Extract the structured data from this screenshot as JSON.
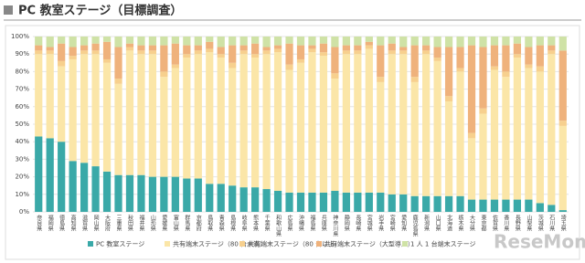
{
  "chart_data": {
    "type": "stacked_bar",
    "title": "PC 教室ステージ（目標調査）",
    "watermark": "ReseMom",
    "categories": [
      "奈良県",
      "福岡県",
      "徳島県",
      "高知県",
      "滋賀県",
      "岡山県",
      "大阪府",
      "三重県",
      "秋田県",
      "福井県",
      "山形県",
      "愛媛県",
      "富山県",
      "群馬県",
      "京都府",
      "鳥取県",
      "青森県",
      "島根県",
      "岐阜県",
      "熊本県",
      "千葉県",
      "和歌山県",
      "広島県",
      "沖縄県",
      "福島県",
      "兵庫県",
      "神奈川県",
      "静岡県",
      "長崎県",
      "宮城県",
      "岩手県",
      "宮崎県",
      "愛知県",
      "鹿児島県",
      "新潟県",
      "山口県",
      "北海道",
      "栃木県",
      "大分県",
      "東京都",
      "佐賀県",
      "香川県",
      "長野県",
      "山梨県",
      "茨城県",
      "石川県",
      "埼玉県"
    ],
    "series": [
      {
        "name": "PC 教室ステージ",
        "color": "#3aa9a8",
        "values": [
          43,
          42,
          40,
          29,
          28,
          26,
          23,
          21,
          21,
          21,
          20,
          20,
          20,
          19,
          19,
          16,
          16,
          15,
          14,
          14,
          13,
          12,
          11,
          11,
          11,
          11,
          12,
          11,
          11,
          11,
          11,
          10,
          10,
          9,
          9,
          9,
          9,
          9,
          7,
          7,
          7,
          7,
          7,
          7,
          5,
          4,
          1
        ]
      },
      {
        "name": "共有端末ステージ（80 台未満）",
        "color": "#fbe6a8",
        "values": [
          47,
          48,
          43,
          58,
          62,
          64,
          62,
          52,
          71,
          69,
          70,
          57,
          62,
          69,
          71,
          75,
          72,
          67,
          76,
          74,
          77,
          79,
          70,
          74,
          80,
          78,
          64,
          79,
          79,
          82,
          63,
          80,
          80,
          65,
          81,
          77,
          54,
          71,
          35,
          49,
          74,
          70,
          81,
          75,
          75,
          86,
          48
        ]
      },
      {
        "name": "共有端末ステージ（80 台以上）",
        "color": "#f7d08e",
        "values": [
          2,
          2,
          3,
          2,
          2,
          2,
          2,
          3,
          2,
          2,
          2,
          3,
          2,
          2,
          2,
          2,
          2,
          3,
          2,
          2,
          2,
          2,
          3,
          2,
          2,
          2,
          3,
          2,
          2,
          2,
          3,
          2,
          2,
          3,
          2,
          2,
          3,
          2,
          3,
          3,
          2,
          3,
          2,
          2,
          3,
          2,
          3
        ]
      },
      {
        "name": "共有端末ステージ（大型導入）",
        "color": "#efb27c",
        "values": [
          3,
          2,
          10,
          5,
          3,
          4,
          10,
          18,
          2,
          3,
          3,
          15,
          12,
          5,
          3,
          4,
          4,
          10,
          3,
          6,
          2,
          2,
          12,
          8,
          2,
          5,
          15,
          3,
          3,
          2,
          18,
          4,
          2,
          18,
          3,
          6,
          28,
          12,
          50,
          35,
          12,
          15,
          6,
          10,
          12,
          3,
          40
        ]
      },
      {
        "name": "1 人 1 台端末ステージ",
        "color": "#cfe2a6",
        "values": [
          5,
          6,
          4,
          6,
          5,
          4,
          3,
          6,
          4,
          5,
          5,
          5,
          4,
          5,
          5,
          3,
          6,
          5,
          5,
          4,
          6,
          5,
          4,
          5,
          5,
          4,
          6,
          5,
          5,
          3,
          5,
          4,
          6,
          5,
          5,
          6,
          6,
          6,
          5,
          6,
          5,
          5,
          4,
          6,
          5,
          5,
          8
        ]
      }
    ],
    "ylim": [
      0,
      100
    ],
    "yticks": [
      {
        "value": 0,
        "label": "0%"
      },
      {
        "value": 10,
        "label": "10%"
      },
      {
        "value": 20,
        "label": "20%"
      },
      {
        "value": 30,
        "label": "30%"
      },
      {
        "value": 40,
        "label": "40%"
      },
      {
        "value": 50,
        "label": "50%"
      },
      {
        "value": 60,
        "label": "60%"
      },
      {
        "value": 70,
        "label": "70%"
      },
      {
        "value": 80,
        "label": "80%"
      },
      {
        "value": 90,
        "label": "90%"
      },
      {
        "value": 100,
        "label": "100%"
      }
    ],
    "grid": true
  }
}
